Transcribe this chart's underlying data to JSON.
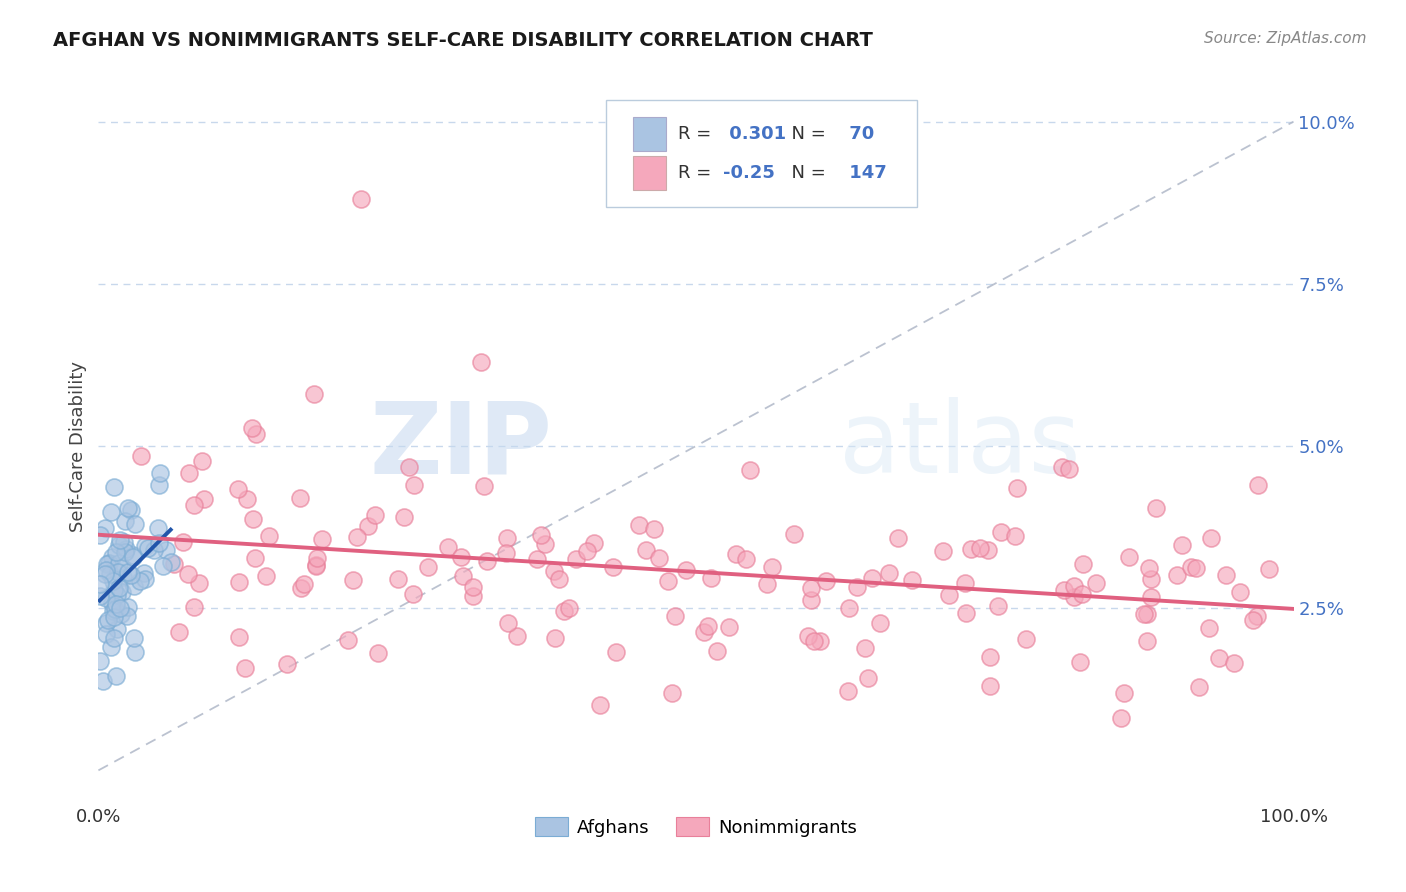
{
  "title": "AFGHAN VS NONIMMIGRANTS SELF-CARE DISABILITY CORRELATION CHART",
  "source": "Source: ZipAtlas.com",
  "ylabel": "Self-Care Disability",
  "watermark_zip": "ZIP",
  "watermark_atlas": "atlas",
  "afghan_R": 0.301,
  "afghan_N": 70,
  "nonimm_R": -0.25,
  "nonimm_N": 147,
  "afghan_color": "#aac4e2",
  "afghan_edge_color": "#7bacd4",
  "afghan_line_color": "#2255aa",
  "nonimm_color": "#f5a8bc",
  "nonimm_edge_color": "#e8809a",
  "nonimm_line_color": "#e06080",
  "background_color": "#ffffff",
  "grid_color": "#c8d8ec",
  "diag_color": "#b0b8c8",
  "xlim": [
    0.0,
    1.0
  ],
  "ylim": [
    -0.005,
    0.105
  ],
  "yticks": [
    0.025,
    0.05,
    0.075,
    0.1
  ],
  "ytick_labels": [
    "2.5%",
    "5.0%",
    "7.5%",
    "10.0%"
  ],
  "xtick_labels": [
    "0.0%",
    "100.0%"
  ],
  "seed": 7
}
